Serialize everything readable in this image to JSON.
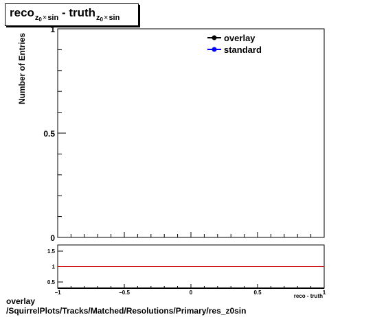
{
  "title": {
    "part1": "reco",
    "part2": "- truth",
    "sub_var": "z",
    "sub_idx": "0",
    "sub_times": "×",
    "sub_fn": "sin"
  },
  "footer": {
    "line1": "overlay",
    "line2": "/SquirrelPlots/Tracks/Matched/Resolutions/Primary/res_z0sin"
  },
  "chart_data": [
    {
      "type": "line",
      "title": "",
      "xlabel": "",
      "ylabel": "Number of Entries",
      "xlim": [
        -1,
        1
      ],
      "ylim": [
        0,
        1
      ],
      "yticks": [
        {
          "value": 0,
          "label": "0"
        },
        {
          "value": 0.5,
          "label": "0.5"
        },
        {
          "value": 1,
          "label": "1"
        }
      ],
      "legend_position": "top-right",
      "series": [
        {
          "name": "overlay",
          "color": "#000000",
          "marker": "circle",
          "x": [],
          "y": []
        },
        {
          "name": "standard",
          "color": "#0000ff",
          "marker": "circle",
          "x": [],
          "y": []
        }
      ]
    },
    {
      "type": "line",
      "title": "",
      "xlabel": "reco - truth",
      "ylabel": "",
      "xlim": [
        -1,
        1
      ],
      "ylim": [
        0.3,
        1.7
      ],
      "xticks": [
        {
          "value": -1,
          "label": "−1"
        },
        {
          "value": -0.5,
          "label": "−0.5"
        },
        {
          "value": 0,
          "label": "0"
        },
        {
          "value": 0.5,
          "label": "0.5"
        },
        {
          "value": 1,
          "label": "1"
        }
      ],
      "yticks": [
        {
          "value": 0.5,
          "label": "0.5"
        },
        {
          "value": 1,
          "label": "1"
        },
        {
          "value": 1.5,
          "label": "1.5"
        }
      ],
      "reference_line": {
        "y": 1,
        "color": "#cc0000"
      }
    }
  ]
}
